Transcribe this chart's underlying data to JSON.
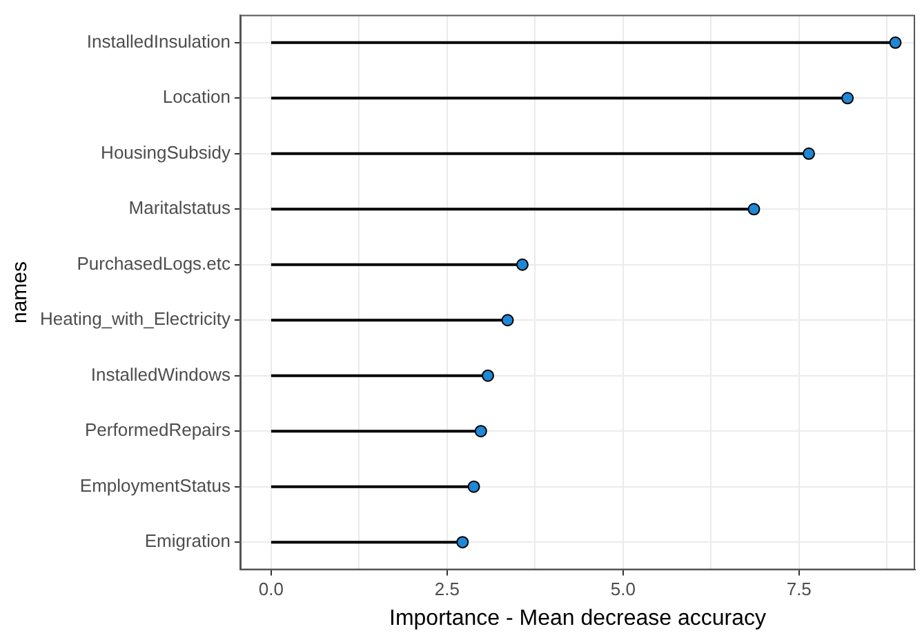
{
  "chart_data": {
    "type": "lollipop",
    "orientation": "horizontal",
    "xlabel": "Importance - Mean decrease accuracy",
    "ylabel": "names",
    "categories": [
      "InstalledInsulation",
      "Location",
      "HousingSubsidy",
      "Maritalstatus",
      "PurchasedLogs.etc",
      "Heating_with_Electricity",
      "InstalledWindows",
      "PerformedRepairs",
      "EmploymentStatus",
      "Emigration"
    ],
    "values": [
      8.87,
      8.19,
      7.64,
      6.86,
      3.57,
      3.36,
      3.08,
      2.98,
      2.88,
      2.72
    ],
    "color": "#1f88d6",
    "marker": "circle",
    "grid": true,
    "xlim": [
      -0.44,
      9.15
    ],
    "xticks": [
      {
        "value": 0,
        "label": "0.0"
      },
      {
        "value": 1.25,
        "label": null
      },
      {
        "value": 2.5,
        "label": "2.5"
      },
      {
        "value": 3.75,
        "label": null
      },
      {
        "value": 5,
        "label": "5.0"
      },
      {
        "value": 6.25,
        "label": null
      },
      {
        "value": 7.5,
        "label": "7.5"
      },
      {
        "value": 8.75,
        "label": null
      }
    ]
  }
}
